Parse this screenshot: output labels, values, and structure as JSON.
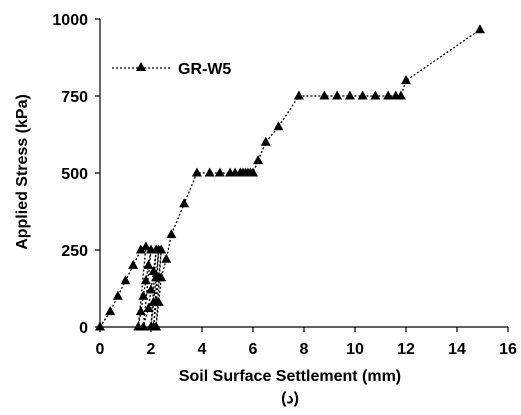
{
  "chart_data": {
    "type": "line",
    "xlabel": "Soil Surface Settlement (mm)",
    "ylabel": "Applied Stress (kPa)",
    "caption": "(د)",
    "xlim": [
      0,
      16
    ],
    "ylim": [
      0,
      1000
    ],
    "xticks": [
      "0",
      "2",
      "4",
      "6",
      "8",
      "10",
      "12",
      "14",
      "16"
    ],
    "yticks": [
      "0",
      "250",
      "500",
      "750",
      "1000"
    ],
    "grid": false,
    "legend_position": "top-left",
    "series": [
      {
        "name": "GR-W5",
        "color": "#000000",
        "marker": "triangle",
        "line_style": "dotted",
        "x": [
          0,
          0.4,
          0.7,
          1.0,
          1.3,
          1.6,
          1.8,
          1.5,
          1.6,
          1.7,
          1.8,
          1.9,
          2.0,
          1.7,
          1.9,
          2.0,
          2.1,
          2.2,
          2.0,
          2.1,
          2.2,
          2.3,
          2.1,
          2.2,
          2.3,
          2.4,
          2.2,
          2.3,
          2.4,
          2.6,
          2.8,
          3.3,
          3.8,
          4.3,
          4.7,
          5.1,
          5.3,
          5.5,
          5.6,
          5.7,
          5.8,
          5.9,
          6.0,
          6.2,
          6.5,
          7.0,
          7.8,
          8.8,
          9.3,
          9.8,
          10.3,
          10.8,
          11.3,
          11.6,
          11.8,
          12.0,
          14.9
        ],
        "y": [
          0,
          50,
          100,
          150,
          200,
          250,
          260,
          0,
          50,
          100,
          150,
          200,
          250,
          0,
          60,
          120,
          180,
          250,
          0,
          80,
          160,
          250,
          0,
          80,
          160,
          250,
          0,
          80,
          160,
          220,
          300,
          400,
          500,
          500,
          500,
          500,
          500,
          500,
          500,
          500,
          500,
          500,
          500,
          540,
          600,
          650,
          750,
          750,
          750,
          750,
          750,
          750,
          750,
          750,
          750,
          800,
          965
        ]
      }
    ]
  }
}
